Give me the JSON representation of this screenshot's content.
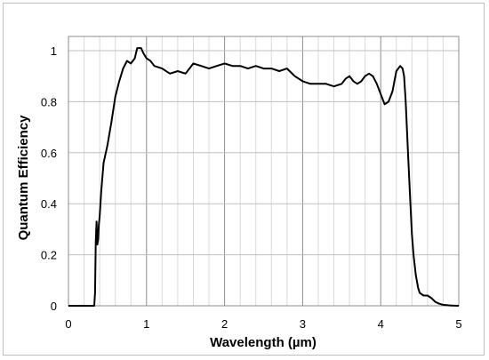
{
  "chart_data": {
    "type": "line",
    "title": "",
    "xlabel": "Wavelength (µm)",
    "ylabel": "Quantum Efficiency",
    "xlim": [
      0,
      5
    ],
    "ylim": [
      0,
      1.05
    ],
    "xticks": [
      "0",
      "1",
      "2",
      "3",
      "4",
      "5"
    ],
    "yticks": [
      "0",
      "0.2",
      "0.4",
      "0.6",
      "0.8",
      "1"
    ],
    "grid": "major and minor vertical, major horizontal",
    "legend": "none",
    "line_color": "#000000",
    "series": [
      {
        "x": [
          0,
          0.33,
          0.34,
          0.35,
          0.36,
          0.37,
          0.38,
          0.39,
          0.4,
          0.42,
          0.45,
          0.5,
          0.55,
          0.6,
          0.65,
          0.7,
          0.75,
          0.8,
          0.85,
          0.88,
          0.9,
          0.93,
          0.96,
          1.0,
          1.05,
          1.1,
          1.2,
          1.3,
          1.4,
          1.5,
          1.6,
          1.7,
          1.8,
          1.9,
          2.0,
          2.1,
          2.2,
          2.3,
          2.4,
          2.5,
          2.6,
          2.7,
          2.8,
          2.9,
          3.0,
          3.1,
          3.2,
          3.3,
          3.4,
          3.5,
          3.55,
          3.6,
          3.65,
          3.7,
          3.75,
          3.8,
          3.85,
          3.9,
          3.95,
          4.0,
          4.05,
          4.1,
          4.15,
          4.2,
          4.25,
          4.28,
          4.3,
          4.32,
          4.35,
          4.38,
          4.4,
          4.42,
          4.45,
          4.48,
          4.5,
          4.55,
          4.6,
          4.65,
          4.7,
          4.75,
          4.8,
          4.9,
          5.0
        ],
        "y": [
          0,
          0,
          0.05,
          0.25,
          0.33,
          0.24,
          0.26,
          0.32,
          0.35,
          0.45,
          0.56,
          0.63,
          0.72,
          0.82,
          0.88,
          0.93,
          0.96,
          0.95,
          0.97,
          1.01,
          1.01,
          1.01,
          0.99,
          0.97,
          0.96,
          0.94,
          0.93,
          0.91,
          0.92,
          0.91,
          0.95,
          0.94,
          0.93,
          0.94,
          0.95,
          0.94,
          0.94,
          0.93,
          0.94,
          0.93,
          0.93,
          0.92,
          0.93,
          0.9,
          0.88,
          0.87,
          0.87,
          0.87,
          0.86,
          0.87,
          0.89,
          0.9,
          0.88,
          0.87,
          0.88,
          0.9,
          0.91,
          0.9,
          0.87,
          0.83,
          0.79,
          0.8,
          0.84,
          0.92,
          0.94,
          0.93,
          0.9,
          0.8,
          0.6,
          0.4,
          0.28,
          0.2,
          0.12,
          0.07,
          0.05,
          0.04,
          0.04,
          0.03,
          0.015,
          0.008,
          0.004,
          0.001,
          0
        ]
      }
    ]
  }
}
